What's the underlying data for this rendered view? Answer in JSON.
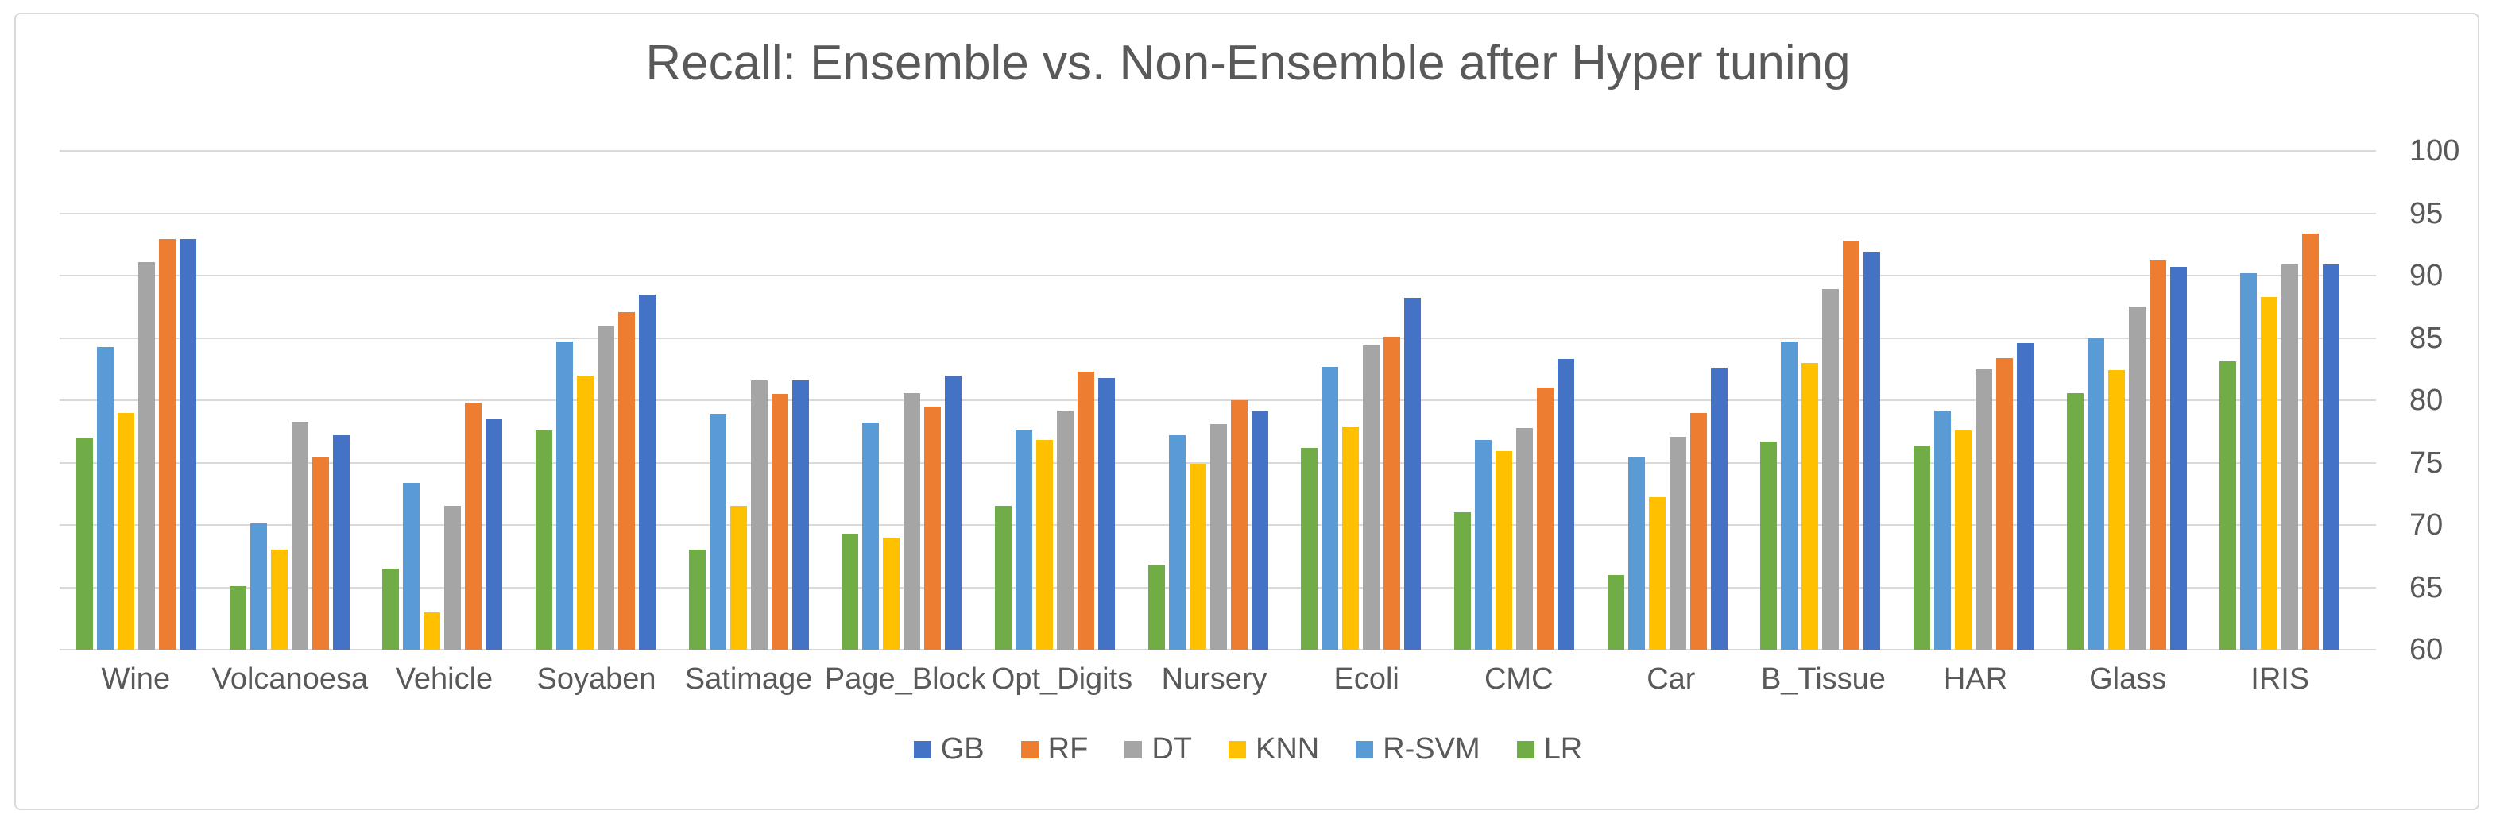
{
  "chart_data": {
    "type": "bar",
    "title": "Recall: Ensemble vs. Non-Ensemble after Hyper tuning",
    "categories": [
      "Wine",
      "Volcanoesa",
      "Vehicle",
      "Soyaben",
      "Satimage",
      "Page_Block",
      "Opt_Digits",
      "Nursery",
      "Ecoli",
      "CMC",
      "Car",
      "B_Tissue",
      "HAR",
      "Glass",
      "IRIS"
    ],
    "series": [
      {
        "name": "GB",
        "color": "#4472C4",
        "values": [
          92.9,
          77.2,
          78.5,
          88.5,
          81.6,
          82.0,
          81.8,
          79.1,
          88.2,
          83.3,
          82.6,
          91.9,
          84.6,
          90.7,
          90.9
        ]
      },
      {
        "name": "RF",
        "color": "#ED7D31",
        "values": [
          92.9,
          75.4,
          79.8,
          87.1,
          80.5,
          79.5,
          82.3,
          80.0,
          85.1,
          81.0,
          79.0,
          92.8,
          83.4,
          91.3,
          93.4
        ]
      },
      {
        "name": "DT",
        "color": "#A5A5A5",
        "values": [
          91.1,
          78.3,
          71.5,
          86.0,
          81.6,
          80.6,
          79.2,
          78.1,
          84.4,
          77.8,
          77.1,
          88.9,
          82.5,
          87.5,
          90.9
        ]
      },
      {
        "name": "KNN",
        "color": "#FFC000",
        "values": [
          79.0,
          68.0,
          63.0,
          82.0,
          71.5,
          69.0,
          76.8,
          74.9,
          77.9,
          75.9,
          72.2,
          83.0,
          77.6,
          82.4,
          88.3
        ]
      },
      {
        "name": "R-SVM",
        "color": "#5B9BD5",
        "values": [
          84.3,
          70.1,
          73.4,
          84.7,
          78.9,
          78.2,
          77.6,
          77.2,
          82.7,
          76.8,
          75.4,
          84.7,
          79.2,
          85.0,
          90.2
        ]
      },
      {
        "name": "LR",
        "color": "#70AD47",
        "values": [
          77.0,
          65.1,
          66.5,
          77.6,
          68.0,
          69.3,
          71.5,
          66.8,
          76.2,
          71.0,
          66.0,
          76.7,
          76.4,
          80.6,
          83.1
        ]
      }
    ],
    "bar_order_left_to_right": [
      "LR",
      "R-SVM",
      "KNN",
      "DT",
      "RF",
      "GB"
    ],
    "legend_order": [
      "GB",
      "RF",
      "DT",
      "KNN",
      "R-SVM",
      "LR"
    ],
    "ylim": [
      60,
      100
    ],
    "ytick_labels": [
      "100",
      "95",
      "90",
      "85",
      "80",
      "75",
      "70",
      "65",
      "60"
    ],
    "axis_labels_side": "right",
    "grid": "horizontal",
    "legend_position": "bottom",
    "style": {
      "text_color": "#595959",
      "gridline_color": "#D9D9D9",
      "frame_border_color": "#D9D9D9",
      "background_color": "#FFFFFF"
    }
  }
}
